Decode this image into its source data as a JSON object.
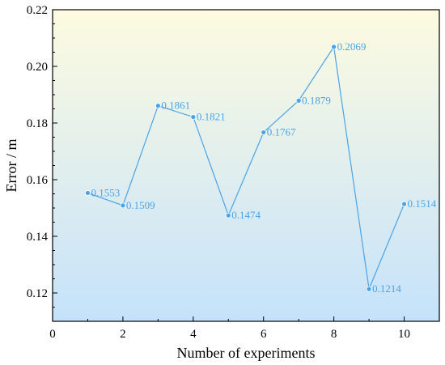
{
  "chart_data": {
    "type": "line",
    "title": "",
    "xlabel": "Number of experiments",
    "ylabel": "Error / m",
    "xlim": [
      0,
      11
    ],
    "ylim": [
      0.11,
      0.22
    ],
    "xticks": [
      0,
      2,
      4,
      6,
      8,
      10
    ],
    "yticks": [
      0.12,
      0.14,
      0.16,
      0.18,
      0.2,
      0.22
    ],
    "xtick_labels": [
      "0",
      "2",
      "4",
      "6",
      "8",
      "10"
    ],
    "ytick_labels": [
      "0.12",
      "0.14",
      "0.16",
      "0.18",
      "0.20",
      "0.22"
    ],
    "grid": false,
    "legend": "none",
    "background_gradient": [
      "#fdfbe0",
      "#c5e2fb"
    ],
    "series": [
      {
        "color": "#4aa3e6",
        "x": [
          1,
          2,
          3,
          4,
          5,
          6,
          7,
          8,
          9,
          10
        ],
        "y": [
          0.1553,
          0.1509,
          0.1861,
          0.1821,
          0.1474,
          0.1767,
          0.1879,
          0.2069,
          0.1214,
          0.1514
        ],
        "labels": [
          "0.1553",
          "0.1509",
          "0.1861",
          "0.1821",
          "0.1474",
          "0.1767",
          "0.1879",
          "0.2069",
          "0.1214",
          "0.1514"
        ]
      }
    ]
  }
}
